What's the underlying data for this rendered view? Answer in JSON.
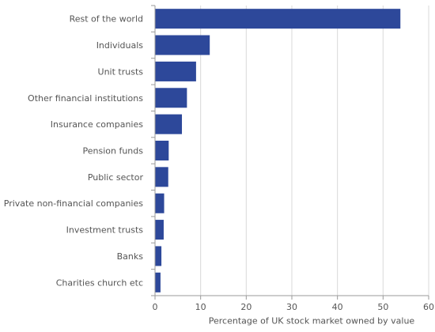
{
  "chart_data": {
    "type": "bar",
    "orientation": "horizontal",
    "categories": [
      "Rest of the world",
      "Individuals",
      "Unit trusts",
      "Other financial institutions",
      "Insurance companies",
      "Pension funds",
      "Public sector",
      "Private non-financial companies",
      "Investment trusts",
      "Banks",
      "Charities church etc"
    ],
    "values": [
      53.8,
      12.0,
      9.0,
      7.0,
      5.9,
      3.0,
      2.9,
      2.0,
      1.9,
      1.4,
      1.2
    ],
    "xlabel": "Percentage of UK stock market owned by value",
    "ylabel": "",
    "title": "",
    "xlim": [
      0,
      60
    ],
    "xticks": [
      0,
      10,
      20,
      30,
      40,
      50,
      60
    ],
    "grid": "vertical",
    "legend": "none",
    "bar_color": "#2d489a",
    "grid_color": "#d9d9d9",
    "axis_color": "#9a9a9a",
    "text_color": "#555555"
  }
}
